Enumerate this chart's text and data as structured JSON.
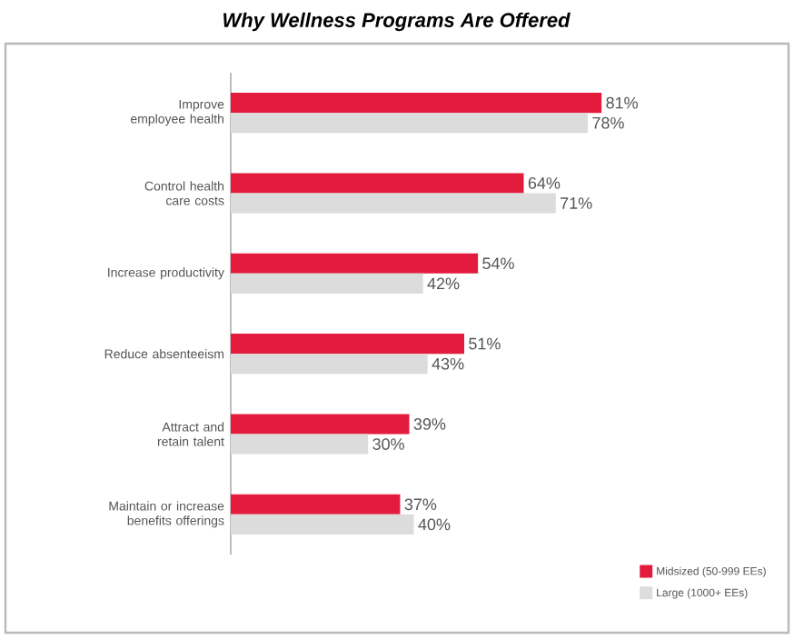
{
  "chart_data": {
    "type": "bar",
    "orientation": "horizontal",
    "title": "Why Wellness Programs Are Offered",
    "categories": [
      "Improve employee health",
      "Control health care costs",
      "Increase productivity",
      "Reduce absenteeism",
      "Attract and retain talent",
      "Maintain or increase benefits offerings"
    ],
    "series": [
      {
        "name": "Midsized (50-999 EEs)",
        "color": "#e31c3d",
        "values": [
          81,
          64,
          54,
          51,
          39,
          37
        ],
        "value_labels": [
          "81%",
          "64%",
          "54%",
          "51%",
          "39%",
          "37%"
        ]
      },
      {
        "name": "Large (1000+ EEs)",
        "color": "#dcdcdc",
        "values": [
          78,
          71,
          42,
          43,
          30,
          40
        ],
        "value_labels": [
          "78%",
          "71%",
          "42%",
          "43%",
          "30%",
          "40%"
        ]
      }
    ],
    "legend": "bottom right"
  }
}
